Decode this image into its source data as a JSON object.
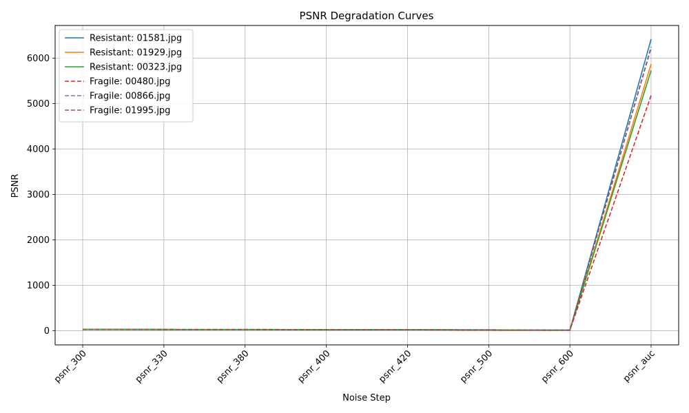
{
  "chart_data": {
    "type": "line",
    "title": "PSNR Degradation Curves",
    "xlabel": "Noise Step",
    "ylabel": "PSNR",
    "categories": [
      "psnr_300",
      "psnr_330",
      "psnr_380",
      "psnr_400",
      "psnr_420",
      "psnr_500",
      "psnr_600",
      "psnr_auc"
    ],
    "yticks": [
      0,
      1000,
      2000,
      3000,
      4000,
      5000,
      6000
    ],
    "ylim": [
      -310,
      6720
    ],
    "grid": true,
    "legend_position": "top-left",
    "series": [
      {
        "name": "Resistant: 01581.jpg",
        "color": "#1f77b4",
        "dash": "solid",
        "values": [
          30,
          29,
          28,
          26,
          24,
          20,
          14,
          6420
        ]
      },
      {
        "name": "Resistant: 01929.jpg",
        "color": "#ff7f0e",
        "dash": "solid",
        "values": [
          28,
          27,
          26,
          24,
          22,
          18,
          12,
          5870
        ]
      },
      {
        "name": "Resistant: 00323.jpg",
        "color": "#2ca02c",
        "dash": "solid",
        "values": [
          28,
          27,
          26,
          24,
          22,
          18,
          12,
          5730
        ]
      },
      {
        "name": "Fragile: 00480.jpg",
        "color": "#d62728",
        "dash": "dashed",
        "values": [
          26,
          25,
          23,
          22,
          20,
          16,
          10,
          5180
        ]
      },
      {
        "name": "Fragile: 00866.jpg",
        "color": "#9467bd",
        "dash": "dashed",
        "values": [
          30,
          29,
          28,
          26,
          24,
          20,
          14,
          6250
        ]
      },
      {
        "name": "Fragile: 01995.jpg",
        "color": "#8c564b",
        "dash": "dashed",
        "values": [
          30,
          29,
          28,
          26,
          24,
          20,
          14,
          6230
        ]
      }
    ]
  }
}
